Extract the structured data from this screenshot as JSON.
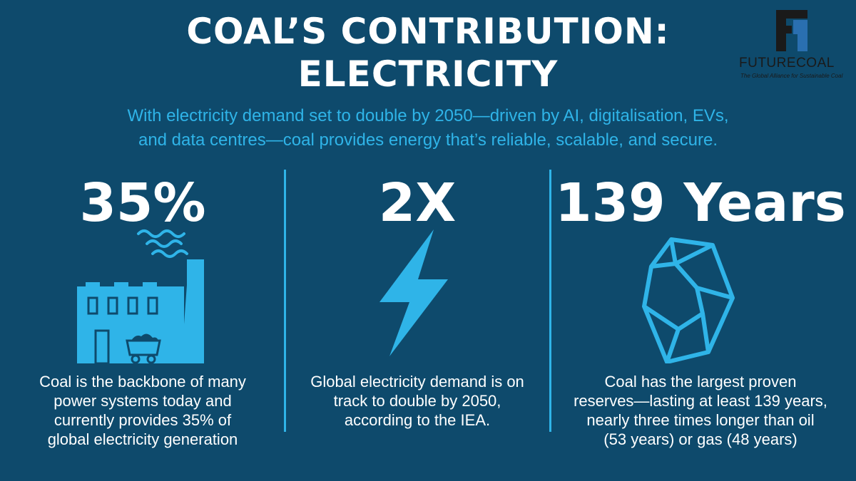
{
  "header": {
    "title_line1": "COAL’S CONTRIBUTION:",
    "title_line2": "ELECTRICITY",
    "subtitle_line1": "With electricity demand set to double by 2050—driven by AI, digitalisation, EVs,",
    "subtitle_line2": "and data centres—coal provides energy that’s reliable, scalable, and secure."
  },
  "logo": {
    "brand_part1": "FUTURE",
    "brand_part2": "COAL",
    "tagline": "The Global Alliance for Sustainable Coal"
  },
  "columns": [
    {
      "stat": "35%",
      "icon": "factory-icon",
      "desc_lines": [
        "Coal is the backbone of many",
        "power systems today and",
        "currently provides 35% of",
        "global electricity generation"
      ]
    },
    {
      "stat": "2X",
      "icon": "lightning-bolt-icon",
      "desc_lines": [
        "Global electricity demand is on",
        "track to double by 2050,",
        "according to the IEA."
      ]
    },
    {
      "stat": "139 Years",
      "icon": "coal-lump-icon",
      "desc_lines": [
        "Coal has the largest proven",
        "reserves—lasting at least 139 years,",
        "nearly three times longer than oil",
        "(53 years) or gas (48 years)"
      ]
    }
  ],
  "colors": {
    "background": "#0e4a6c",
    "accent": "#2fb4e8",
    "text": "#ffffff"
  }
}
